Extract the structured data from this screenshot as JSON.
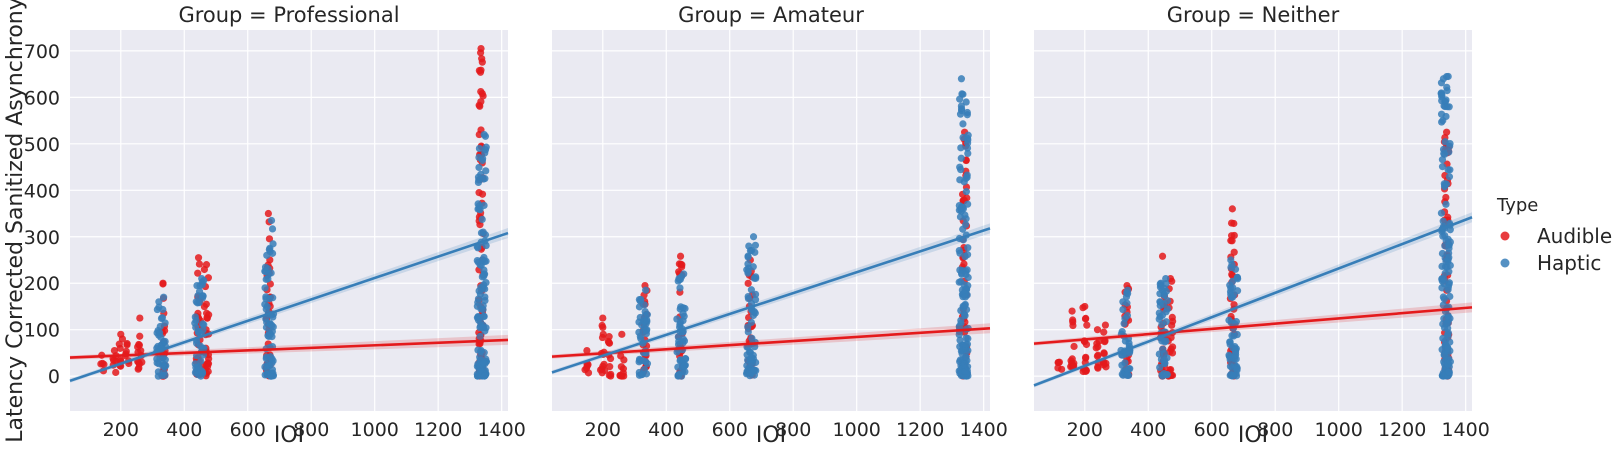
{
  "chart_data": {
    "type": "scatter",
    "xlabel": "IOI",
    "ylabel": "Latency Corrected Sanitized Asynchrony",
    "xlim": [
      40,
      1420
    ],
    "ylim": [
      -75,
      745
    ],
    "x_ticks": [
      "200",
      "400",
      "600",
      "800",
      "1000",
      "1200",
      "1400"
    ],
    "y_ticks": [
      "0",
      "100",
      "200",
      "300",
      "400",
      "500",
      "600",
      "700"
    ],
    "grid": true,
    "legend": {
      "title": "Type",
      "placement": "right",
      "entries": [
        {
          "label": "Audible",
          "color": "#e41a1c"
        },
        {
          "label": "Haptic",
          "color": "#377eb8"
        }
      ]
    },
    "panels": [
      {
        "title": "Group = Professional",
        "series": [
          {
            "name": "Audible",
            "color": "#e41a1c",
            "regression": {
              "x": [
                40,
                1420
              ],
              "y": [
                40,
                78
              ]
            },
            "columns": [
              {
                "x": 140,
                "ymin": 10,
                "ymax": 45
              },
              {
                "x": 180,
                "ymin": 5,
                "ymax": 55
              },
              {
                "x": 200,
                "ymin": 20,
                "ymax": 90
              },
              {
                "x": 220,
                "ymin": 15,
                "ymax": 70
              },
              {
                "x": 260,
                "ymin": 5,
                "ymax": 125
              },
              {
                "x": 333,
                "ymin": 0,
                "ymax": 200
              },
              {
                "x": 445,
                "ymin": 0,
                "ymax": 255
              },
              {
                "x": 470,
                "ymin": 0,
                "ymax": 240
              },
              {
                "x": 665,
                "ymin": 0,
                "ymax": 350
              },
              {
                "x": 1335,
                "ymin": 0,
                "ymax": 705
              }
            ]
          },
          {
            "name": "Haptic",
            "color": "#377eb8",
            "regression": {
              "x": [
                40,
                1420
              ],
              "y": [
                -10,
                308
              ]
            },
            "columns": [
              {
                "x": 320,
                "ymin": 0,
                "ymax": 160
              },
              {
                "x": 335,
                "ymin": 0,
                "ymax": 170
              },
              {
                "x": 440,
                "ymin": 0,
                "ymax": 195
              },
              {
                "x": 455,
                "ymin": 0,
                "ymax": 210
              },
              {
                "x": 660,
                "ymin": 0,
                "ymax": 260
              },
              {
                "x": 675,
                "ymin": 0,
                "ymax": 335
              },
              {
                "x": 1330,
                "ymin": 0,
                "ymax": 490
              },
              {
                "x": 1345,
                "ymin": 0,
                "ymax": 520
              }
            ]
          }
        ]
      },
      {
        "title": "Group = Amateur",
        "series": [
          {
            "name": "Audible",
            "color": "#e41a1c",
            "regression": {
              "x": [
                40,
                1420
              ],
              "y": [
                42,
                103
              ]
            },
            "columns": [
              {
                "x": 150,
                "ymin": 0,
                "ymax": 55
              },
              {
                "x": 200,
                "ymin": 5,
                "ymax": 125
              },
              {
                "x": 220,
                "ymin": 0,
                "ymax": 85
              },
              {
                "x": 260,
                "ymin": 0,
                "ymax": 90
              },
              {
                "x": 333,
                "ymin": 0,
                "ymax": 195
              },
              {
                "x": 445,
                "ymin": 0,
                "ymax": 258
              },
              {
                "x": 665,
                "ymin": 0,
                "ymax": 250
              },
              {
                "x": 1340,
                "ymin": 0,
                "ymax": 525
              }
            ]
          },
          {
            "name": "Haptic",
            "color": "#377eb8",
            "regression": {
              "x": [
                40,
                1420
              ],
              "y": [
                8,
                318
              ]
            },
            "columns": [
              {
                "x": 320,
                "ymin": 0,
                "ymax": 165
              },
              {
                "x": 335,
                "ymin": 0,
                "ymax": 185
              },
              {
                "x": 440,
                "ymin": 0,
                "ymax": 210
              },
              {
                "x": 455,
                "ymin": 0,
                "ymax": 220
              },
              {
                "x": 660,
                "ymin": 0,
                "ymax": 280
              },
              {
                "x": 675,
                "ymin": 0,
                "ymax": 300
              },
              {
                "x": 1330,
                "ymin": 0,
                "ymax": 640
              },
              {
                "x": 1345,
                "ymin": 0,
                "ymax": 590
              }
            ]
          }
        ]
      },
      {
        "title": "Group = Neither",
        "series": [
          {
            "name": "Audible",
            "color": "#e41a1c",
            "regression": {
              "x": [
                40,
                1420
              ],
              "y": [
                70,
                148
              ]
            },
            "columns": [
              {
                "x": 120,
                "ymin": 10,
                "ymax": 30
              },
              {
                "x": 160,
                "ymin": 20,
                "ymax": 140
              },
              {
                "x": 200,
                "ymin": 10,
                "ymax": 150
              },
              {
                "x": 240,
                "ymin": 15,
                "ymax": 100
              },
              {
                "x": 265,
                "ymin": 20,
                "ymax": 110
              },
              {
                "x": 333,
                "ymin": 0,
                "ymax": 195
              },
              {
                "x": 445,
                "ymin": 0,
                "ymax": 258
              },
              {
                "x": 470,
                "ymin": 0,
                "ymax": 210
              },
              {
                "x": 665,
                "ymin": 0,
                "ymax": 360
              },
              {
                "x": 1340,
                "ymin": 0,
                "ymax": 525
              }
            ]
          },
          {
            "name": "Haptic",
            "color": "#377eb8",
            "regression": {
              "x": [
                40,
                1420
              ],
              "y": [
                -20,
                342
              ]
            },
            "columns": [
              {
                "x": 320,
                "ymin": 0,
                "ymax": 160
              },
              {
                "x": 335,
                "ymin": 0,
                "ymax": 185
              },
              {
                "x": 440,
                "ymin": 0,
                "ymax": 200
              },
              {
                "x": 455,
                "ymin": 0,
                "ymax": 210
              },
              {
                "x": 660,
                "ymin": 0,
                "ymax": 250
              },
              {
                "x": 675,
                "ymin": 0,
                "ymax": 230
              },
              {
                "x": 1330,
                "ymin": 0,
                "ymax": 640
              },
              {
                "x": 1345,
                "ymin": 0,
                "ymax": 645
              }
            ]
          }
        ]
      }
    ]
  }
}
